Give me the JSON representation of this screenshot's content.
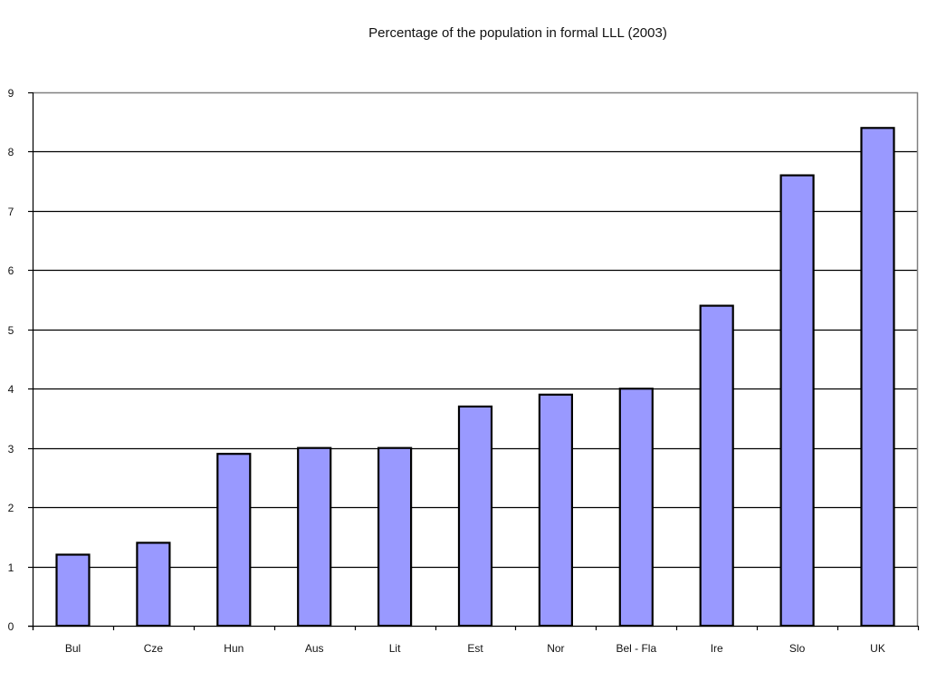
{
  "chart_data": {
    "type": "bar",
    "title": "Percentage of the population in formal LLL (2003)",
    "xlabel": "",
    "ylabel": "",
    "categories": [
      "Bul",
      "Cze",
      "Hun",
      "Aus",
      "Lit",
      "Est",
      "Nor",
      "Bel - Fla",
      "Ire",
      "Slo",
      "UK"
    ],
    "series": [
      {
        "values": [
          1.2,
          1.4,
          2.9,
          3.0,
          3.0,
          3.7,
          3.9,
          4.0,
          5.4,
          7.6,
          8.4
        ]
      }
    ],
    "ylim": [
      0,
      9
    ],
    "yticks": [
      0,
      1,
      2,
      3,
      4,
      5,
      6,
      7,
      8,
      9
    ],
    "grid": true,
    "legend": "none",
    "colors": {
      "bar_fill": "#9999ff",
      "bar_stroke": "#000000",
      "gridline": "#000000",
      "frame": "#808080"
    }
  }
}
